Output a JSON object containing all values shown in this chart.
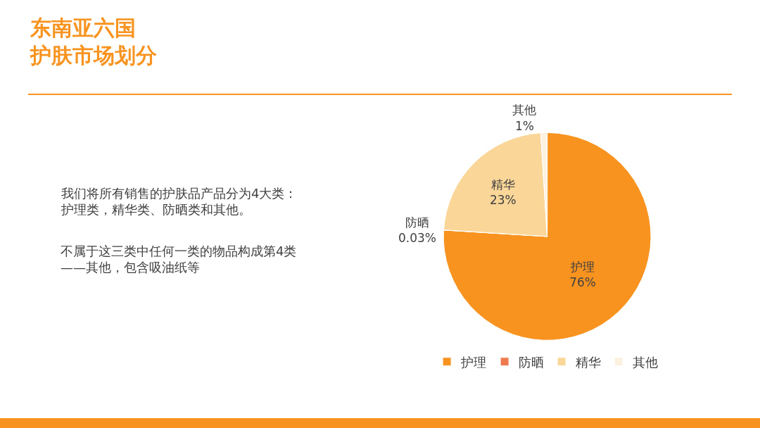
{
  "chart_data": {
    "type": "pie",
    "title": "东南亚六国护肤市场划分",
    "categories": [
      "护理",
      "防晒",
      "精华",
      "其他"
    ],
    "values": [
      76,
      0.03,
      23,
      1
    ],
    "value_labels": [
      "76%",
      "0.03%",
      "23%",
      "1%"
    ],
    "colors": [
      "#f7931e",
      "#ee7b4f",
      "#fad799",
      "#fdf1e2"
    ],
    "legend": "bottom",
    "annotations": [
      "我们将所有销售的护肤品产品分为4大类：护理类，精华类、防晒类和其他。",
      "不属于这三类中任何一类的物品构成第4类——其他，包含吸油纸等"
    ]
  }
}
